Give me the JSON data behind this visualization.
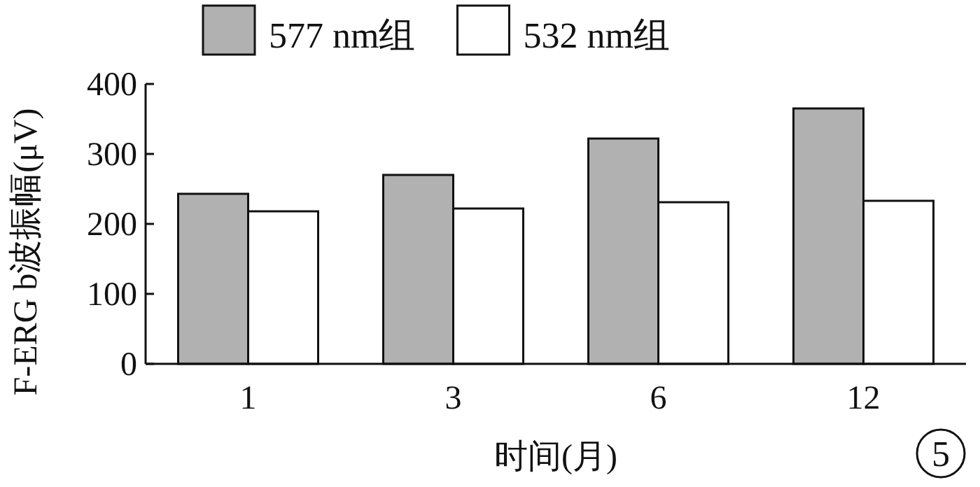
{
  "chart_data": {
    "type": "bar",
    "categories": [
      "1",
      "3",
      "6",
      "12"
    ],
    "series": [
      {
        "name": "577 nm组",
        "color": "#b0b1b0",
        "values": [
          243,
          270,
          322,
          365
        ]
      },
      {
        "name": "532 nm组",
        "color": "#ffffff",
        "values": [
          218,
          222,
          231,
          233
        ]
      }
    ],
    "xlabel": "时间(月)",
    "ylabel": "F-ERG b波振幅(μV)",
    "ylim": [
      0,
      400
    ],
    "yticks": [
      0,
      100,
      200,
      300,
      400
    ],
    "legend": "top",
    "grid": false,
    "annotations": [
      "5"
    ]
  }
}
